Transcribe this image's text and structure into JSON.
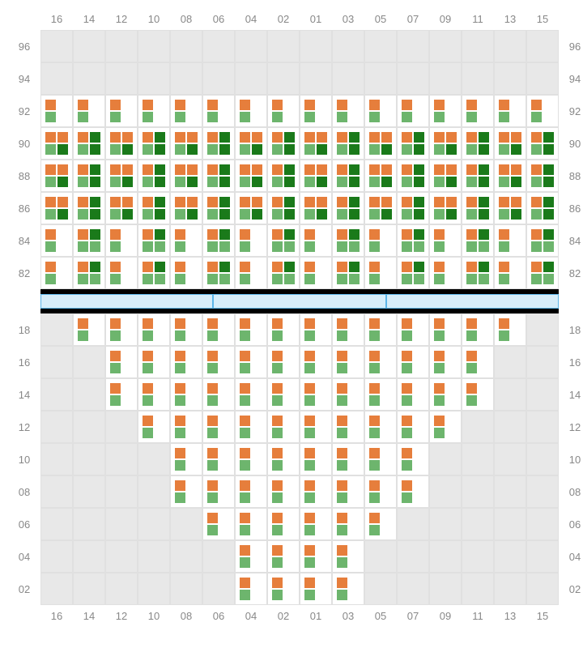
{
  "colors": {
    "orange": "#e67e3c",
    "green": "#6db56d",
    "darkgreen": "#1a7a1a",
    "empty_bg": "#e8e8e8",
    "filled_bg": "#ffffff",
    "grid_border": "#e0e0e0",
    "label_color": "#888888",
    "divider": "#000000",
    "blue_fill": "#d6edf9",
    "blue_border": "#5bb5e8"
  },
  "columns": [
    "16",
    "14",
    "12",
    "10",
    "08",
    "06",
    "04",
    "02",
    "01",
    "03",
    "05",
    "07",
    "09",
    "11",
    "13",
    "15"
  ],
  "top_rows": [
    "96",
    "94",
    "92",
    "90",
    "88",
    "86",
    "84",
    "82"
  ],
  "bottom_rows": [
    "18",
    "16",
    "14",
    "12",
    "10",
    "08",
    "06",
    "04",
    "02"
  ],
  "blue_segments": 3,
  "cell_patterns_comment": "pattern codes: 0=empty, A=orange-top-left+green-bottom-left, B=4squares orange/darkgreen/green/darkgreen, C=orange/orange/green/darkgreen, D=orange/darkgreen/green/green",
  "top_grid": [
    [
      "0",
      "0",
      "0",
      "0",
      "0",
      "0",
      "0",
      "0",
      "0",
      "0",
      "0",
      "0",
      "0",
      "0",
      "0",
      "0"
    ],
    [
      "0",
      "0",
      "0",
      "0",
      "0",
      "0",
      "0",
      "0",
      "0",
      "0",
      "0",
      "0",
      "0",
      "0",
      "0",
      "0"
    ],
    [
      "A",
      "A",
      "A",
      "A",
      "A",
      "A",
      "A",
      "A",
      "A",
      "A",
      "A",
      "A",
      "A",
      "A",
      "A",
      "A"
    ],
    [
      "C",
      "B",
      "C",
      "B",
      "C",
      "B",
      "C",
      "B",
      "C",
      "B",
      "C",
      "B",
      "C",
      "B",
      "C",
      "B"
    ],
    [
      "C",
      "B",
      "C",
      "B",
      "C",
      "B",
      "C",
      "B",
      "C",
      "B",
      "C",
      "B",
      "C",
      "B",
      "C",
      "B"
    ],
    [
      "C",
      "B",
      "C",
      "B",
      "C",
      "B",
      "C",
      "B",
      "C",
      "B",
      "C",
      "B",
      "C",
      "B",
      "C",
      "B"
    ],
    [
      "A",
      "D",
      "A",
      "D",
      "A",
      "D",
      "A",
      "D",
      "A",
      "D",
      "A",
      "D",
      "A",
      "D",
      "A",
      "D"
    ],
    [
      "A",
      "D",
      "A",
      "D",
      "A",
      "D",
      "A",
      "D",
      "A",
      "D",
      "A",
      "D",
      "A",
      "D",
      "A",
      "D"
    ]
  ],
  "bottom_grid": [
    [
      "0",
      "A",
      "A",
      "A",
      "A",
      "A",
      "A",
      "A",
      "A",
      "A",
      "A",
      "A",
      "A",
      "A",
      "A",
      "0"
    ],
    [
      "0",
      "0",
      "A",
      "A",
      "A",
      "A",
      "A",
      "A",
      "A",
      "A",
      "A",
      "A",
      "A",
      "A",
      "0",
      "0"
    ],
    [
      "0",
      "0",
      "A",
      "A",
      "A",
      "A",
      "A",
      "A",
      "A",
      "A",
      "A",
      "A",
      "A",
      "A",
      "0",
      "0"
    ],
    [
      "0",
      "0",
      "0",
      "A",
      "A",
      "A",
      "A",
      "A",
      "A",
      "A",
      "A",
      "A",
      "A",
      "0",
      "0",
      "0"
    ],
    [
      "0",
      "0",
      "0",
      "0",
      "A",
      "A",
      "A",
      "A",
      "A",
      "A",
      "A",
      "A",
      "0",
      "0",
      "0",
      "0"
    ],
    [
      "0",
      "0",
      "0",
      "0",
      "A",
      "A",
      "A",
      "A",
      "A",
      "A",
      "A",
      "A",
      "0",
      "0",
      "0",
      "0"
    ],
    [
      "0",
      "0",
      "0",
      "0",
      "0",
      "A",
      "A",
      "A",
      "A",
      "A",
      "A",
      "0",
      "0",
      "0",
      "0",
      "0"
    ],
    [
      "0",
      "0",
      "0",
      "0",
      "0",
      "0",
      "A",
      "A",
      "A",
      "A",
      "0",
      "0",
      "0",
      "0",
      "0",
      "0"
    ],
    [
      "0",
      "0",
      "0",
      "0",
      "0",
      "0",
      "A",
      "A",
      "A",
      "A",
      "0",
      "0",
      "0",
      "0",
      "0",
      "0"
    ]
  ]
}
